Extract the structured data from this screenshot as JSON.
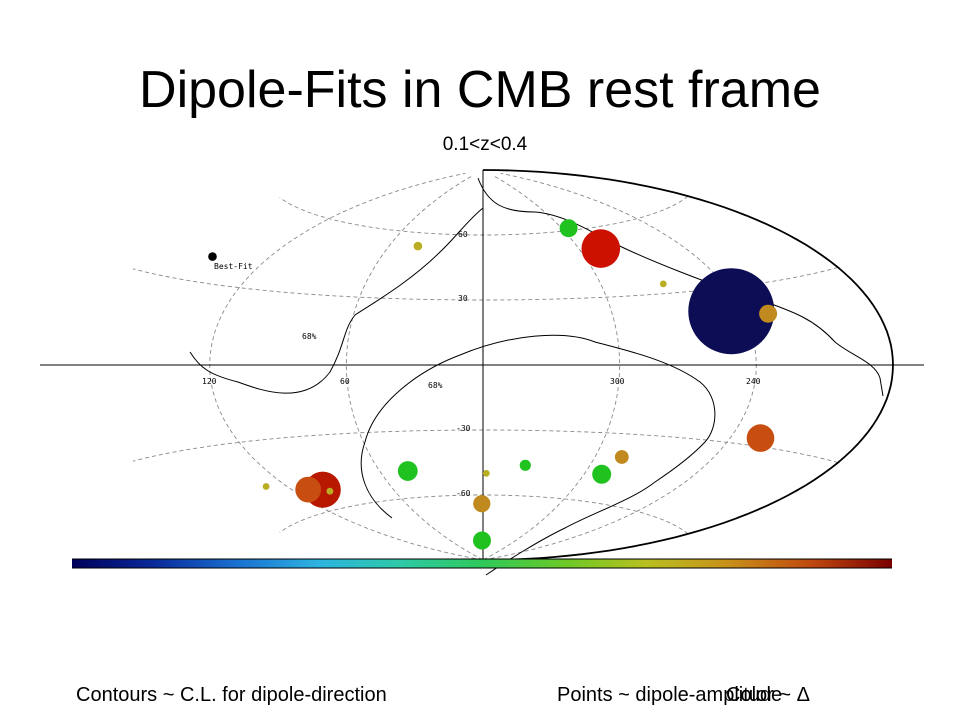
{
  "page": {
    "title": "Dipole-Fits in CMB rest frame",
    "subtitle": "0.1<z<0.4",
    "footer_left": "Contours ~ C.L. for dipole-direction",
    "footer_right_a": "Points ~ dipole-amplitude",
    "footer_right_b": "Color ~ Δ"
  },
  "chart_data": {
    "type": "scatter",
    "projection": "aitoff",
    "lon_ticks": [
      "120",
      "60",
      "300",
      "240"
    ],
    "lat_ticks": [
      "60",
      "30",
      "-30",
      "-60"
    ],
    "annotations": [
      "Best-Fit",
      "68%",
      "68%"
    ],
    "colorbar": {
      "colormap": "rainbow",
      "min_color": "#00005a",
      "max_color": "#7a0000"
    },
    "colors": {
      "navy": "#0d0d55",
      "red": "#cc1100",
      "darkred": "#b81800",
      "orange": "#c84d10",
      "ochre": "#c08a1e",
      "olive": "#b9ae22",
      "green": "#1fc21f"
    },
    "points": [
      {
        "name": "best-fit",
        "lon": 148,
        "lat": 39,
        "size": 1,
        "color": "#000000"
      },
      {
        "name": "navy",
        "lon": 245,
        "lat": 21,
        "size": 10,
        "color": "#0d0d55"
      },
      {
        "name": "red-top",
        "lon": 287,
        "lat": 51,
        "size": 4.5,
        "color": "#cc1100"
      },
      {
        "name": "green-top",
        "lon": 295,
        "lat": 61,
        "size": 2.1,
        "color": "#1fc21f"
      },
      {
        "name": "olive-top",
        "lon": 42,
        "lat": 54,
        "size": 1,
        "color": "#b9ae22"
      },
      {
        "name": "olive-right",
        "lon": 269,
        "lat": 34,
        "size": 0.8,
        "color": "#b9ae22"
      },
      {
        "name": "ochre-right",
        "lon": 229,
        "lat": 19,
        "size": 2.1,
        "color": "#c08a1e"
      },
      {
        "name": "orange-right",
        "lon": 226,
        "lat": -27,
        "size": 3.2,
        "color": "#c84d10"
      },
      {
        "name": "darkred-left",
        "lon": 103,
        "lat": -52,
        "size": 4.2,
        "color": "#b81800"
      },
      {
        "name": "orange-left",
        "lon": 111,
        "lat": -51,
        "size": 3.0,
        "color": "#c84d10"
      },
      {
        "name": "olive-left",
        "lon": 131,
        "lat": -47,
        "size": 0.8,
        "color": "#b9ae22"
      },
      {
        "name": "olive-left-2",
        "lon": 100,
        "lat": -53,
        "size": 0.8,
        "color": "#b9ae22"
      },
      {
        "name": "green-left",
        "lon": 44,
        "lat": -48,
        "size": 2.3,
        "color": "#1fc21f"
      },
      {
        "name": "olive-center",
        "lon": 358,
        "lat": -50,
        "size": 0.8,
        "color": "#b9ae22"
      },
      {
        "name": "green-center",
        "lon": 336,
        "lat": -46,
        "size": 1.3,
        "color": "#1fc21f"
      },
      {
        "name": "ochre-center",
        "lon": 1,
        "lat": -64,
        "size": 2.0,
        "color": "#c08a1e"
      },
      {
        "name": "green-bottom",
        "lon": 2,
        "lat": -81,
        "size": 2.1,
        "color": "#1fc21f"
      },
      {
        "name": "green-lower-right",
        "lon": 290,
        "lat": -48,
        "size": 2.2,
        "color": "#1fc21f"
      },
      {
        "name": "ochre-lower-right",
        "lon": 286,
        "lat": -40,
        "size": 1.6,
        "color": "#c08a1e"
      }
    ]
  }
}
